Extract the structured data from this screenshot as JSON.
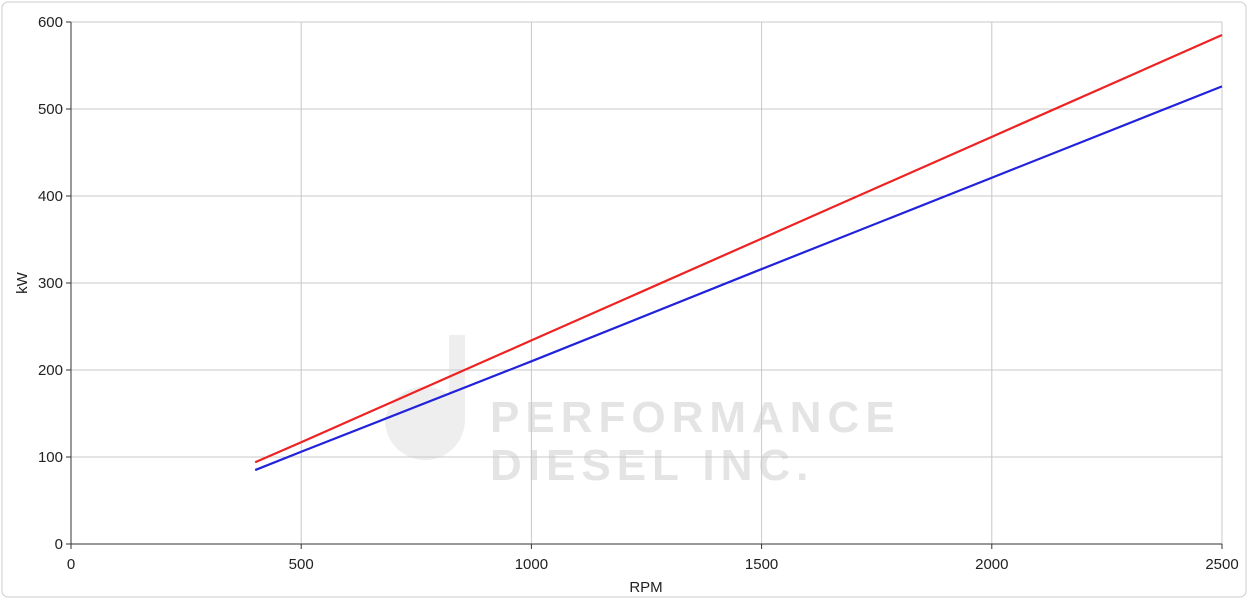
{
  "chart_data": {
    "type": "line",
    "x_label": "RPM",
    "y_label": "kW",
    "watermark": [
      "PERFORMANCE",
      "DIESEL INC."
    ],
    "x": [
      400,
      500,
      1000,
      1500,
      2000,
      2500
    ],
    "series": [
      {
        "color": "#ee2222",
        "values": [
          94,
          117,
          234,
          351,
          468,
          585
        ]
      },
      {
        "color": "#2222dd",
        "values": [
          85,
          106,
          210,
          316,
          421,
          526
        ]
      }
    ],
    "xlim": [
      0,
      2500
    ],
    "xticks": [
      0,
      500,
      1000,
      1500,
      2000,
      2500
    ],
    "ylim": [
      0,
      600
    ],
    "yticks": [
      0,
      100,
      200,
      300,
      400,
      500,
      600
    ],
    "grid": true
  }
}
